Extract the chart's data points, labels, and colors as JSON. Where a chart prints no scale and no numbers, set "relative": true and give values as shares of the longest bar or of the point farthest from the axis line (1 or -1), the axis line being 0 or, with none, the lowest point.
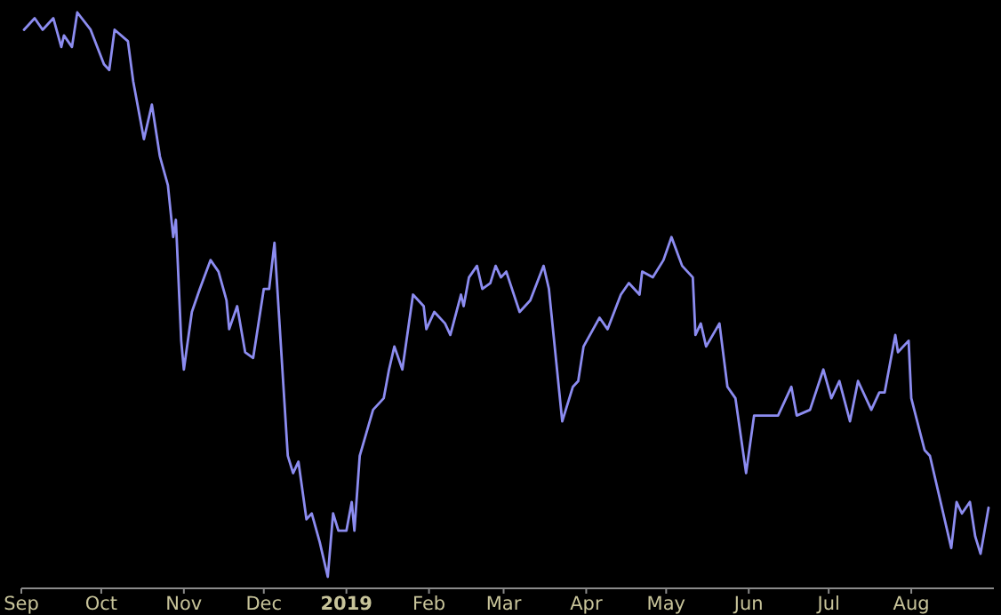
{
  "chart_data": {
    "type": "line",
    "relative": true,
    "xlim": [
      "2018-09-01",
      "2019-09-01"
    ],
    "xticks": [
      {
        "value": "2018-09-01",
        "label": "Sep"
      },
      {
        "value": "2018-10-01",
        "label": "Oct"
      },
      {
        "value": "2018-11-01",
        "label": "Nov"
      },
      {
        "value": "2018-12-01",
        "label": "Dec"
      },
      {
        "value": "2019-01-01",
        "label": "2019"
      },
      {
        "value": "2019-02-01",
        "label": "Feb"
      },
      {
        "value": "2019-03-01",
        "label": "Mar"
      },
      {
        "value": "2019-04-01",
        "label": "Apr"
      },
      {
        "value": "2019-05-01",
        "label": "May"
      },
      {
        "value": "2019-06-01",
        "label": "Jun"
      },
      {
        "value": "2019-07-01",
        "label": "Jul"
      },
      {
        "value": "2019-08-01",
        "label": "Aug"
      }
    ],
    "x": [
      "2018-09-02",
      "2018-09-06",
      "2018-09-09",
      "2018-09-13",
      "2018-09-16",
      "2018-09-17",
      "2018-09-20",
      "2018-09-22",
      "2018-09-27",
      "2018-10-02",
      "2018-10-04",
      "2018-10-06",
      "2018-10-11",
      "2018-10-13",
      "2018-10-17",
      "2018-10-20",
      "2018-10-23",
      "2018-10-26",
      "2018-10-28",
      "2018-10-29",
      "2018-10-31",
      "2018-11-01",
      "2018-11-04",
      "2018-11-07",
      "2018-11-11",
      "2018-11-14",
      "2018-11-17",
      "2018-11-18",
      "2018-11-21",
      "2018-11-24",
      "2018-11-27",
      "2018-11-29",
      "2018-12-01",
      "2018-12-03",
      "2018-12-05",
      "2018-12-10",
      "2018-12-12",
      "2018-12-14",
      "2018-12-17",
      "2018-12-19",
      "2018-12-22",
      "2018-12-25",
      "2018-12-27",
      "2018-12-29",
      "2019-01-01",
      "2019-01-03",
      "2019-01-04",
      "2019-01-06",
      "2019-01-11",
      "2019-01-15",
      "2019-01-17",
      "2019-01-19",
      "2019-01-22",
      "2019-01-26",
      "2019-01-30",
      "2019-01-31",
      "2019-02-03",
      "2019-02-07",
      "2019-02-09",
      "2019-02-13",
      "2019-02-14",
      "2019-02-16",
      "2019-02-19",
      "2019-02-21",
      "2019-02-24",
      "2019-02-26",
      "2019-02-28",
      "2019-03-02",
      "2019-03-07",
      "2019-03-11",
      "2019-03-16",
      "2019-03-18",
      "2019-03-23",
      "2019-03-27",
      "2019-03-29",
      "2019-03-31",
      "2019-04-06",
      "2019-04-09",
      "2019-04-14",
      "2019-04-17",
      "2019-04-21",
      "2019-04-22",
      "2019-04-26",
      "2019-04-30",
      "2019-05-03",
      "2019-05-07",
      "2019-05-11",
      "2019-05-12",
      "2019-05-14",
      "2019-05-16",
      "2019-05-21",
      "2019-05-24",
      "2019-05-27",
      "2019-05-31",
      "2019-06-03",
      "2019-06-06",
      "2019-06-12",
      "2019-06-15",
      "2019-06-17",
      "2019-06-19",
      "2019-06-24",
      "2019-06-29",
      "2019-07-02",
      "2019-07-05",
      "2019-07-09",
      "2019-07-12",
      "2019-07-17",
      "2019-07-20",
      "2019-07-22",
      "2019-07-26",
      "2019-07-27",
      "2019-07-31",
      "2019-08-01",
      "2019-08-06",
      "2019-08-08",
      "2019-08-12",
      "2019-08-16",
      "2019-08-18",
      "2019-08-20",
      "2019-08-23",
      "2019-08-25",
      "2019-08-27",
      "2019-08-30"
    ],
    "series": [
      {
        "color": "#8c8cf0",
        "values": [
          0.97,
          0.99,
          0.97,
          0.99,
          0.94,
          0.96,
          0.94,
          1,
          0.97,
          0.91,
          0.9,
          0.97,
          0.95,
          0.88,
          0.78,
          0.84,
          0.75,
          0.7,
          0.61,
          0.64,
          0.43,
          0.38,
          0.48,
          0.52,
          0.57,
          0.55,
          0.5,
          0.45,
          0.49,
          0.41,
          0.4,
          0.46,
          0.52,
          0.52,
          0.6,
          0.23,
          0.2,
          0.22,
          0.12,
          0.13,
          0.08,
          0.02,
          0.13,
          0.1,
          0.1,
          0.15,
          0.1,
          0.23,
          0.31,
          0.33,
          0.38,
          0.42,
          0.38,
          0.51,
          0.49,
          0.45,
          0.48,
          0.46,
          0.44,
          0.51,
          0.49,
          0.54,
          0.56,
          0.52,
          0.53,
          0.56,
          0.54,
          0.55,
          0.48,
          0.5,
          0.56,
          0.52,
          0.29,
          0.35,
          0.36,
          0.42,
          0.47,
          0.45,
          0.51,
          0.53,
          0.51,
          0.55,
          0.54,
          0.57,
          0.61,
          0.56,
          0.54,
          0.44,
          0.46,
          0.42,
          0.46,
          0.35,
          0.33,
          0.2,
          0.3,
          0.3,
          0.3,
          0.33,
          0.35,
          0.3,
          0.31,
          0.38,
          0.33,
          0.36,
          0.29,
          0.36,
          0.31,
          0.34,
          0.34,
          0.44,
          0.41,
          0.43,
          0.33,
          0.24,
          0.23,
          0.15,
          0.07,
          0.15,
          0.13,
          0.15,
          0.09,
          0.06,
          0.14
        ]
      }
    ]
  }
}
